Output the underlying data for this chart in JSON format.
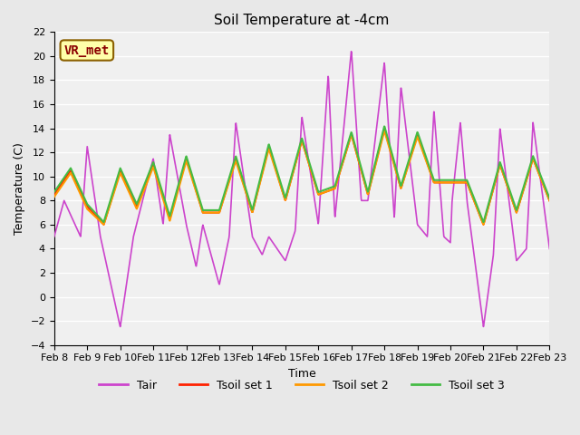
{
  "title": "Soil Temperature at -4cm",
  "xlabel": "Time",
  "ylabel": "Temperature (C)",
  "ylim": [
    -4,
    22
  ],
  "yticks": [
    -4,
    -2,
    0,
    2,
    4,
    6,
    8,
    10,
    12,
    14,
    16,
    18,
    20,
    22
  ],
  "xlim": [
    0,
    15
  ],
  "xtick_labels": [
    "Feb 8",
    "Feb 9",
    "Feb 10",
    "Feb 11",
    "Feb 12",
    "Feb 13",
    "Feb 14",
    "Feb 15",
    "Feb 16",
    "Feb 17",
    "Feb 18",
    "Feb 19",
    "Feb 20",
    "Feb 21",
    "Feb 22",
    "Feb 23"
  ],
  "annotation_text": "VR_met",
  "annotation_color": "#8B0000",
  "annotation_bg": "#FFFFAA",
  "bg_color": "#E8E8E8",
  "plot_bg": "#F0F0F0",
  "grid_color": "#FFFFFF",
  "colors": {
    "Tair": "#CC44CC",
    "Tsoil1": "#FF2200",
    "Tsoil2": "#FF9900",
    "Tsoil3": "#44BB44"
  },
  "legend_labels": [
    "Tair",
    "Tsoil set 1",
    "Tsoil set 2",
    "Tsoil set 3"
  ]
}
